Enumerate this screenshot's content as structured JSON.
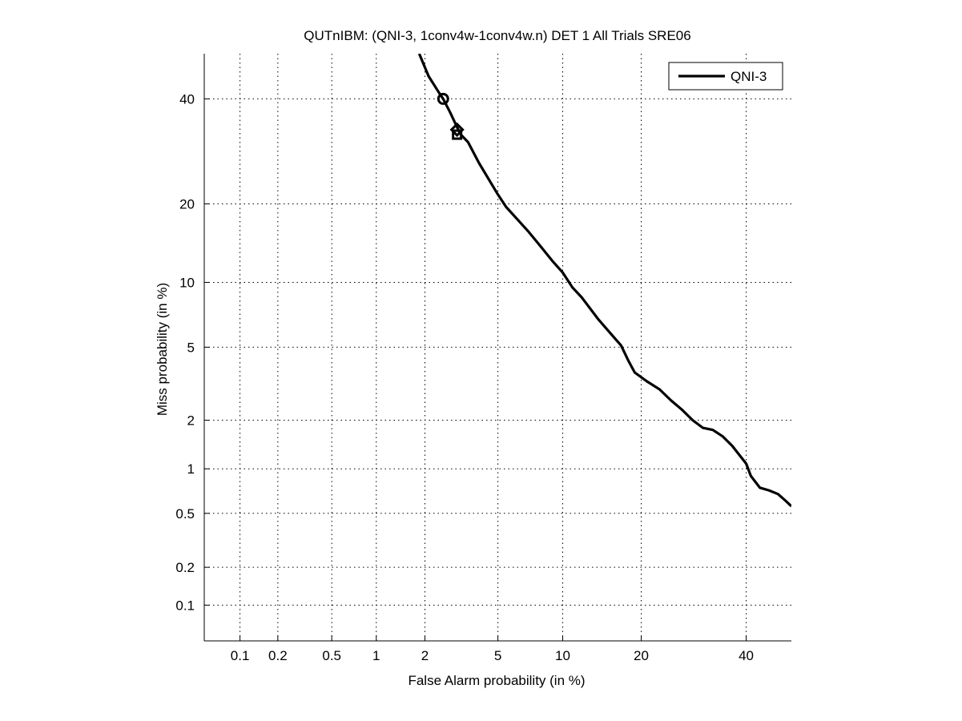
{
  "chart_data": {
    "type": "line",
    "scale": "normal-deviate (probit) on both axes",
    "title": "QUTnIBM: (QNI-3, 1conv4w-1conv4w.n) DET 1 All Trials SRE06",
    "xlabel": "False Alarm probability (in %)",
    "ylabel": "Miss probability (in %)",
    "xlim": [
      0.05,
      50
    ],
    "ylim": [
      0.05,
      50
    ],
    "grid": true,
    "x_ticks": [
      0.1,
      0.2,
      0.5,
      1,
      2,
      5,
      10,
      20,
      40
    ],
    "y_ticks": [
      0.1,
      0.2,
      0.5,
      1,
      2,
      5,
      10,
      20,
      40
    ],
    "x_tick_labels": [
      "0.1",
      "0.2",
      "0.5",
      "1",
      "2",
      "5",
      "10",
      "20",
      "40"
    ],
    "y_tick_labels": [
      "0.1",
      "0.2",
      "0.5",
      "1",
      "2",
      "5",
      "10",
      "20",
      "40"
    ],
    "legend": {
      "position": "top-right",
      "entries": [
        "QNI-3"
      ]
    },
    "series": [
      {
        "name": "QNI-3",
        "color": "#000000",
        "x": [
          1.85,
          2.1,
          2.4,
          2.55,
          2.8,
          3.05,
          3.2,
          3.5,
          4.0,
          4.6,
          5.0,
          5.5,
          6.3,
          7.0,
          8.0,
          9.0,
          10.0,
          11.0,
          12.0,
          14.0,
          16.0,
          17.0,
          18.0,
          19.0,
          21.0,
          23.0,
          25.0,
          27.0,
          29.0,
          31.0,
          33.0,
          35.0,
          37.0,
          40.0,
          41.0,
          43.0,
          45.0,
          47.0,
          48.5,
          50.0
        ],
        "y": [
          50,
          45,
          41.5,
          40,
          37,
          34,
          32.5,
          31,
          27,
          23.5,
          21.5,
          19.5,
          17.5,
          16,
          14,
          12.3,
          11,
          9.5,
          8.6,
          6.8,
          5.6,
          5.1,
          4.3,
          3.7,
          3.3,
          3.0,
          2.6,
          2.3,
          2.0,
          1.8,
          1.75,
          1.6,
          1.4,
          1.08,
          0.9,
          0.75,
          0.72,
          0.68,
          0.62,
          0.56
        ]
      }
    ],
    "markers": [
      {
        "shape": "circle",
        "x": 2.55,
        "y": 40
      },
      {
        "shape": "square",
        "x": 3.05,
        "y": 32.5
      },
      {
        "shape": "diamond",
        "x": 3.05,
        "y": 33.5
      }
    ]
  }
}
